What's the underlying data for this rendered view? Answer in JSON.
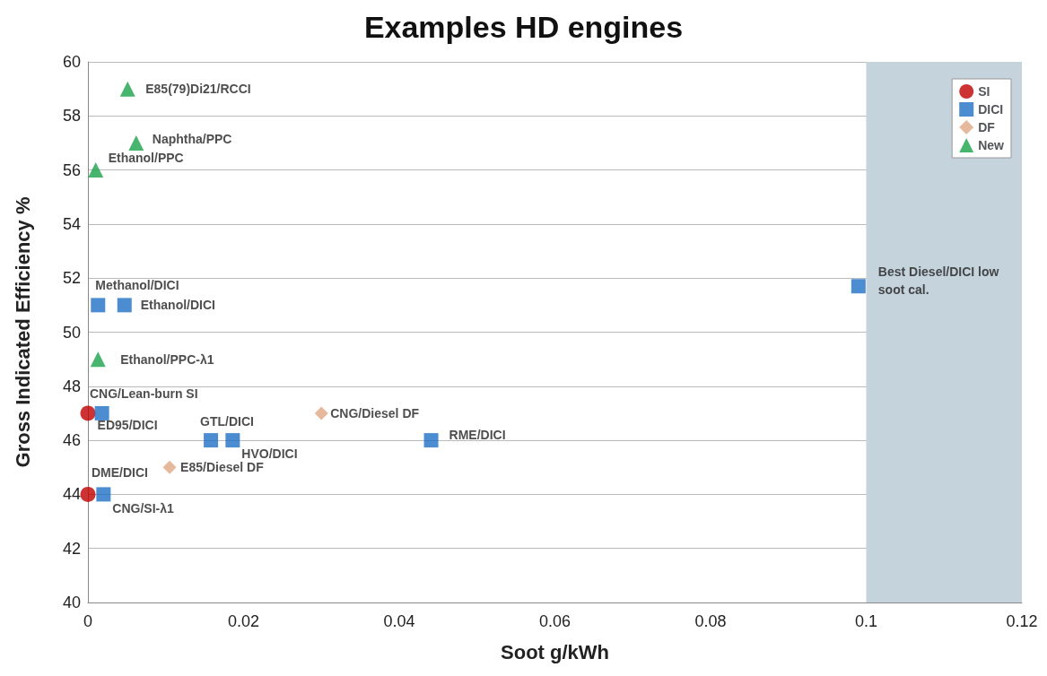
{
  "chart_data": {
    "type": "scatter",
    "title": "Examples HD engines",
    "xlabel": "Soot g/kWh",
    "ylabel": "Gross Indicated Efficiency %",
    "xlim": [
      0,
      0.12
    ],
    "xticks": [
      0,
      0.02,
      0.04,
      0.06,
      0.08,
      0.1,
      0.12
    ],
    "ylim": [
      40,
      60
    ],
    "yticks": [
      40,
      42,
      44,
      46,
      48,
      50,
      52,
      54,
      56,
      58,
      60
    ],
    "grid": "y",
    "legend": "top right",
    "series": [
      {
        "name": "SI",
        "color": "#c00000",
        "marker": "circle",
        "x": [
          0,
          0
        ],
        "values": [
          47,
          44
        ]
      },
      {
        "name": "DICI",
        "color": "#1f6fc5",
        "marker": "square",
        "x": [
          0.0013,
          0.0047,
          0.0018,
          0.0158,
          0.0186,
          0.0441,
          0.099,
          0.002
        ],
        "values": [
          51,
          51,
          47,
          46,
          46,
          46,
          51.7,
          44
        ]
      },
      {
        "name": "DF",
        "color": "#e0a885",
        "marker": "diamond",
        "x": [
          0.03,
          0.0105
        ],
        "values": [
          47,
          45
        ]
      },
      {
        "name": "New",
        "color": "#1aa34a",
        "marker": "triangle",
        "x": [
          0.0051,
          0.0062,
          0.001,
          0.0013
        ],
        "values": [
          59,
          57,
          56,
          49
        ]
      }
    ],
    "bands": [
      {
        "axis": "x",
        "from": 0.1,
        "to": 0.12,
        "color": "#c5d3dc"
      }
    ],
    "annotations": [
      {
        "text": "E85(79)Di21/RCCI",
        "x": 0.0051,
        "y": 59
      },
      {
        "text": "Naphtha/PPC",
        "x": 0.0062,
        "y": 57
      },
      {
        "text": "Ethanol/PPC",
        "x": 0.001,
        "y": 56
      },
      {
        "text": "Methanol/DICI",
        "x": 0.0013,
        "y": 51
      },
      {
        "text": "Ethanol/DICI",
        "x": 0.0047,
        "y": 51
      },
      {
        "text": "Ethanol/PPC-λ1",
        "x": 0.0013,
        "y": 49
      },
      {
        "text": "CNG/Lean-burn SI",
        "x": 0,
        "y": 47
      },
      {
        "text": "ED95/DICI",
        "x": 0.0018,
        "y": 47
      },
      {
        "text": "GTL/DICI",
        "x": 0.0158,
        "y": 46
      },
      {
        "text": "HVO/DICI",
        "x": 0.0186,
        "y": 46
      },
      {
        "text": "CNG/Diesel DF",
        "x": 0.03,
        "y": 47
      },
      {
        "text": "RME/DICI",
        "x": 0.0441,
        "y": 46
      },
      {
        "text": "E85/Diesel DF",
        "x": 0.0105,
        "y": 45
      },
      {
        "text": "DME/DICI",
        "x": 0,
        "y": 44
      },
      {
        "text": "CNG/SI-λ1",
        "x": 0.002,
        "y": 44
      },
      {
        "text": "Best Diesel/DICI low soot cal.",
        "x": 0.099,
        "y": 51.7
      }
    ]
  }
}
